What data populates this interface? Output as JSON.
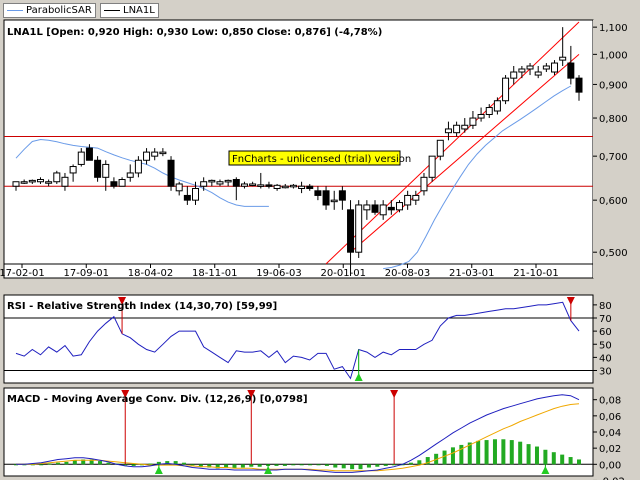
{
  "legend": [
    {
      "label": "ParabolicSAR",
      "color": "#6a9be8"
    },
    {
      "label": "LNA1L",
      "color": "#000000"
    }
  ],
  "watermark": "FnCharts - unlicensed (trial) version",
  "chart_data": [
    {
      "type": "candlestick",
      "title": "LNA1L [Open: 0,920  High: 0,930  Low: 0,850  Close: 0,876] (-4,78%)",
      "ohlc_header": {
        "symbol": "LNA1L",
        "open": "0,920",
        "high": "0,930",
        "low": "0,850",
        "close": "0,876",
        "change": "(-4,78%)"
      },
      "y_scale": "log",
      "ylim": [
        0.46,
        1.12
      ],
      "yticks": [
        "1,100",
        "1,000",
        "0,900",
        "0,800",
        "0,700",
        "0,600",
        "0,500"
      ],
      "xticks": [
        "17-02-01",
        "17-09-01",
        "18-04-02",
        "18-11-01",
        "19-06-03",
        "20-01-01",
        "20-08-03",
        "21-03-01",
        "21-10-01"
      ],
      "candles": [
        [
          0.63,
          0.64,
          0.62,
          0.64
        ],
        [
          0.64,
          0.645,
          0.635,
          0.64
        ],
        [
          0.64,
          0.645,
          0.635,
          0.643
        ],
        [
          0.64,
          0.65,
          0.635,
          0.645
        ],
        [
          0.64,
          0.645,
          0.63,
          0.64
        ],
        [
          0.64,
          0.665,
          0.635,
          0.66
        ],
        [
          0.63,
          0.66,
          0.62,
          0.65
        ],
        [
          0.66,
          0.68,
          0.64,
          0.675
        ],
        [
          0.68,
          0.72,
          0.675,
          0.71
        ],
        [
          0.72,
          0.73,
          0.69,
          0.69
        ],
        [
          0.69,
          0.7,
          0.64,
          0.65
        ],
        [
          0.65,
          0.69,
          0.62,
          0.68
        ],
        [
          0.64,
          0.65,
          0.625,
          0.63
        ],
        [
          0.63,
          0.65,
          0.63,
          0.645
        ],
        [
          0.65,
          0.68,
          0.64,
          0.66
        ],
        [
          0.66,
          0.7,
          0.65,
          0.69
        ],
        [
          0.69,
          0.72,
          0.68,
          0.71
        ],
        [
          0.7,
          0.72,
          0.69,
          0.71
        ],
        [
          0.71,
          0.72,
          0.7,
          0.71
        ],
        [
          0.69,
          0.7,
          0.62,
          0.63
        ],
        [
          0.62,
          0.64,
          0.61,
          0.635
        ],
        [
          0.61,
          0.63,
          0.59,
          0.6
        ],
        [
          0.6,
          0.64,
          0.59,
          0.625
        ],
        [
          0.63,
          0.65,
          0.62,
          0.64
        ],
        [
          0.64,
          0.645,
          0.63,
          0.643
        ],
        [
          0.635,
          0.645,
          0.63,
          0.64
        ],
        [
          0.64,
          0.645,
          0.63,
          0.643
        ],
        [
          0.645,
          0.65,
          0.6,
          0.63
        ],
        [
          0.63,
          0.64,
          0.625,
          0.635
        ],
        [
          0.635,
          0.64,
          0.63,
          0.635
        ],
        [
          0.63,
          0.66,
          0.625,
          0.633
        ],
        [
          0.633,
          0.64,
          0.625,
          0.63
        ],
        [
          0.625,
          0.635,
          0.62,
          0.632
        ],
        [
          0.63,
          0.635,
          0.625,
          0.63
        ],
        [
          0.63,
          0.635,
          0.625,
          0.632
        ],
        [
          0.625,
          0.64,
          0.615,
          0.63
        ],
        [
          0.63,
          0.635,
          0.62,
          0.625
        ],
        [
          0.62,
          0.63,
          0.6,
          0.61
        ],
        [
          0.62,
          0.63,
          0.58,
          0.59
        ],
        [
          0.6,
          0.62,
          0.58,
          0.6
        ],
        [
          0.62,
          0.63,
          0.58,
          0.6
        ],
        [
          0.58,
          0.6,
          0.46,
          0.5
        ],
        [
          0.5,
          0.6,
          0.49,
          0.59
        ],
        [
          0.58,
          0.6,
          0.56,
          0.59
        ],
        [
          0.59,
          0.6,
          0.57,
          0.575
        ],
        [
          0.57,
          0.6,
          0.56,
          0.59
        ],
        [
          0.585,
          0.6,
          0.57,
          0.58
        ],
        [
          0.58,
          0.6,
          0.575,
          0.595
        ],
        [
          0.59,
          0.62,
          0.58,
          0.61
        ],
        [
          0.6,
          0.62,
          0.59,
          0.61
        ],
        [
          0.62,
          0.66,
          0.61,
          0.65
        ],
        [
          0.65,
          0.7,
          0.64,
          0.7
        ],
        [
          0.7,
          0.74,
          0.69,
          0.74
        ],
        [
          0.76,
          0.79,
          0.74,
          0.77
        ],
        [
          0.76,
          0.79,
          0.75,
          0.78
        ],
        [
          0.77,
          0.8,
          0.76,
          0.78
        ],
        [
          0.78,
          0.82,
          0.77,
          0.8
        ],
        [
          0.8,
          0.83,
          0.79,
          0.81
        ],
        [
          0.81,
          0.84,
          0.8,
          0.83
        ],
        [
          0.82,
          0.86,
          0.81,
          0.85
        ],
        [
          0.85,
          0.93,
          0.84,
          0.92
        ],
        [
          0.92,
          0.96,
          0.9,
          0.94
        ],
        [
          0.94,
          0.96,
          0.92,
          0.95
        ],
        [
          0.95,
          0.97,
          0.93,
          0.96
        ],
        [
          0.93,
          0.96,
          0.92,
          0.94
        ],
        [
          0.95,
          0.97,
          0.94,
          0.96
        ],
        [
          0.94,
          0.98,
          0.93,
          0.97
        ],
        [
          0.98,
          1.1,
          0.96,
          0.99
        ],
        [
          0.97,
          1.03,
          0.9,
          0.92
        ],
        [
          0.92,
          0.93,
          0.85,
          0.876
        ]
      ],
      "sar": [
        0.695,
        0.717,
        0.737,
        0.742,
        0.74,
        0.736,
        0.731,
        0.727,
        0.724,
        0.722,
        0.72,
        0.711,
        0.703,
        0.696,
        0.69,
        0.685,
        0.68,
        0.671,
        0.66,
        0.651,
        0.644,
        0.638,
        0.632,
        0.625,
        0.616,
        0.605,
        0.596,
        0.59,
        0.587,
        0.587,
        0.587,
        0.587,
        0.472,
        0.474,
        0.478,
        0.484,
        0.5,
        0.528,
        0.56,
        0.59,
        0.62,
        0.65,
        0.68,
        0.705,
        0.727,
        0.746,
        0.765,
        0.78,
        0.795,
        0.811,
        0.828,
        0.846,
        0.864,
        0.88,
        0.895
      ],
      "sar_start_index": 0,
      "sar_break_index": 32,
      "horizontal_lines": [
        0.75,
        0.63
      ],
      "trend_channel": {
        "lower": [
          [
            41,
            0.5
          ],
          [
            69,
            1.0
          ]
        ],
        "upper": [
          [
            38,
            0.48
          ],
          [
            69,
            1.12
          ]
        ]
      }
    },
    {
      "type": "line",
      "title": "RSI - Relative Strength Index (14,30,70) [59,99]",
      "ylim": [
        22,
        86
      ],
      "yticks": [
        "80",
        "70",
        "60",
        "50",
        "40",
        "30"
      ],
      "levels": [
        70,
        30
      ],
      "values": [
        43,
        41,
        46,
        42,
        48,
        44,
        49,
        41,
        42,
        52,
        60,
        66,
        71,
        58,
        55,
        50,
        46,
        44,
        50,
        56,
        60,
        60,
        60,
        48,
        44,
        40,
        36,
        45,
        44,
        44,
        45,
        40,
        45,
        36,
        41,
        40,
        38,
        43,
        43,
        31,
        33,
        24,
        46,
        44,
        40,
        44,
        42,
        46,
        46,
        46,
        50,
        53,
        64,
        70,
        72,
        72,
        73,
        74,
        75,
        76,
        77,
        77,
        78,
        79,
        80,
        80,
        81,
        82,
        68,
        60
      ],
      "signals_down": [
        13,
        68
      ],
      "signals_up": [
        42
      ]
    },
    {
      "type": "bar",
      "title": "MACD - Moving Average Conv. Div. (12,26,9) [0,0798]",
      "ylim": [
        -0.012,
        0.092
      ],
      "yticks": [
        "0,08",
        "0,06",
        "0,04",
        "0,02",
        "0,00",
        "-0,02"
      ],
      "histogram": [
        0,
        0,
        0,
        0,
        0.001,
        0.002,
        0.003,
        0.005,
        0.006,
        0.006,
        0.004,
        0.002,
        0.001,
        -0.001,
        -0.002,
        -0.001,
        0.001,
        0.003,
        0.004,
        0.004,
        0.002,
        -0.001,
        -0.003,
        -0.004,
        -0.005,
        -0.004,
        -0.005,
        -0.004,
        -0.003,
        -0.003,
        -0.002,
        -0.002,
        -0.002,
        -0.001,
        0,
        0,
        -0.001,
        -0.002,
        -0.004,
        -0.005,
        -0.006,
        -0.006,
        -0.004,
        -0.003,
        -0.002,
        -0.001,
        0,
        0.002,
        0.005,
        0.009,
        0.013,
        0.017,
        0.021,
        0.024,
        0.027,
        0.029,
        0.03,
        0.031,
        0.031,
        0.03,
        0.028,
        0.025,
        0.022,
        0.018,
        0.015,
        0.012,
        0.009,
        0.006
      ],
      "macd": [
        0,
        0,
        0.001,
        0.002,
        0.004,
        0.006,
        0.007,
        0.008,
        0.008,
        0.007,
        0.005,
        0.003,
        0,
        -0.002,
        -0.003,
        -0.003,
        -0.002,
        0,
        0.001,
        0,
        -0.002,
        -0.004,
        -0.005,
        -0.006,
        -0.006,
        -0.006,
        -0.007,
        -0.007,
        -0.007,
        -0.007,
        -0.007,
        -0.007,
        -0.006,
        -0.006,
        -0.006,
        -0.007,
        -0.008,
        -0.009,
        -0.01,
        -0.01,
        -0.01,
        -0.009,
        -0.008,
        -0.007,
        -0.005,
        -0.003,
        0,
        0.005,
        0.011,
        0.018,
        0.025,
        0.032,
        0.039,
        0.045,
        0.051,
        0.056,
        0.061,
        0.065,
        0.069,
        0.072,
        0.075,
        0.078,
        0.081,
        0.083,
        0.085,
        0.086,
        0.085,
        0.08
      ],
      "signal": [
        0,
        0,
        0,
        0.001,
        0.002,
        0.003,
        0.004,
        0.005,
        0.005,
        0.005,
        0.005,
        0.004,
        0.003,
        0.002,
        0.001,
        0,
        -0.001,
        -0.001,
        -0.001,
        -0.001,
        -0.002,
        -0.002,
        -0.003,
        -0.003,
        -0.004,
        -0.004,
        -0.005,
        -0.005,
        -0.005,
        -0.006,
        -0.006,
        -0.006,
        -0.006,
        -0.006,
        -0.006,
        -0.006,
        -0.007,
        -0.007,
        -0.008,
        -0.008,
        -0.008,
        -0.008,
        -0.008,
        -0.008,
        -0.007,
        -0.006,
        -0.005,
        -0.003,
        -0.001,
        0.002,
        0.006,
        0.01,
        0.014,
        0.019,
        0.024,
        0.029,
        0.034,
        0.039,
        0.044,
        0.048,
        0.053,
        0.057,
        0.061,
        0.065,
        0.069,
        0.072,
        0.074,
        0.075
      ],
      "signals_down": [
        13,
        28,
        45
      ],
      "signals_up": [
        17,
        30,
        63
      ]
    }
  ]
}
